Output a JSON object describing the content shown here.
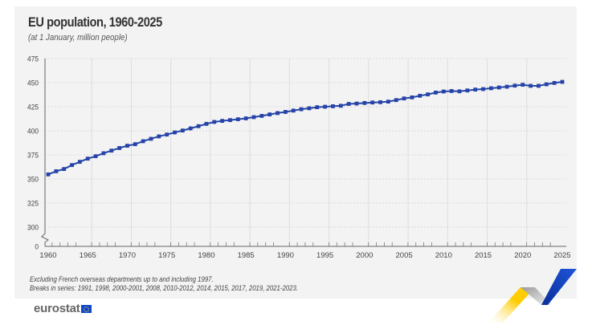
{
  "chart_data": {
    "type": "line",
    "title": "EU population, 1960-2025",
    "subtitle": "(at 1 January, million people)",
    "xlabel": "",
    "ylabel": "million people",
    "ylim": [
      300,
      475
    ],
    "y_axis_break": true,
    "y_ticks": [
      "0",
      "300",
      "325",
      "350",
      "375",
      "400",
      "425",
      "450",
      "475"
    ],
    "x_ticks": [
      "1960",
      "1965",
      "1970",
      "1975",
      "1980",
      "1985",
      "1990",
      "1995",
      "2000",
      "2005",
      "2010",
      "2015",
      "2020",
      "2025"
    ],
    "grid": true,
    "legend": "none",
    "series": [
      {
        "name": "EU population",
        "color": "#2644a8",
        "x": [
          1960,
          1961,
          1962,
          1963,
          1964,
          1965,
          1966,
          1967,
          1968,
          1969,
          1970,
          1971,
          1972,
          1973,
          1974,
          1975,
          1976,
          1977,
          1978,
          1979,
          1980,
          1981,
          1982,
          1983,
          1984,
          1985,
          1986,
          1987,
          1988,
          1989,
          1990,
          1991,
          1992,
          1993,
          1994,
          1995,
          1996,
          1997,
          1998,
          1999,
          2000,
          2001,
          2002,
          2003,
          2004,
          2005,
          2006,
          2007,
          2008,
          2009,
          2010,
          2011,
          2012,
          2013,
          2014,
          2015,
          2016,
          2017,
          2018,
          2019,
          2020,
          2021,
          2022,
          2023,
          2024,
          2025
        ],
        "values": [
          354.7,
          358.0,
          360.3,
          364.4,
          367.8,
          371.1,
          373.6,
          376.7,
          379.4,
          382.1,
          384.5,
          386.1,
          389.2,
          391.7,
          394.2,
          396.1,
          398.3,
          400.3,
          402.5,
          404.8,
          407.2,
          409.2,
          410.3,
          411.1,
          412.0,
          412.9,
          414.2,
          415.5,
          417.0,
          418.4,
          419.6,
          421.0,
          422.4,
          423.4,
          424.5,
          425.0,
          425.5,
          426.0,
          427.9,
          428.3,
          428.9,
          429.4,
          429.7,
          430.3,
          431.9,
          433.6,
          434.7,
          436.4,
          437.8,
          439.7,
          440.8,
          441.3,
          441.0,
          441.9,
          442.8,
          443.3,
          444.2,
          445.0,
          445.8,
          446.9,
          447.8,
          446.7,
          446.7,
          448.3,
          449.7,
          450.8
        ]
      }
    ],
    "notes": [
      "Excluding French overseas departments up to and including 1997.",
      "Breaks in series: 1991, 1998, 2000-2001, 2008, 2010-2012, 2014, 2015, 2017, 2019, 2021-2023."
    ]
  },
  "branding": {
    "logo_text": "eurostat",
    "accent_blue": "#0e47cb",
    "accent_yellow": "#ffcc00"
  }
}
